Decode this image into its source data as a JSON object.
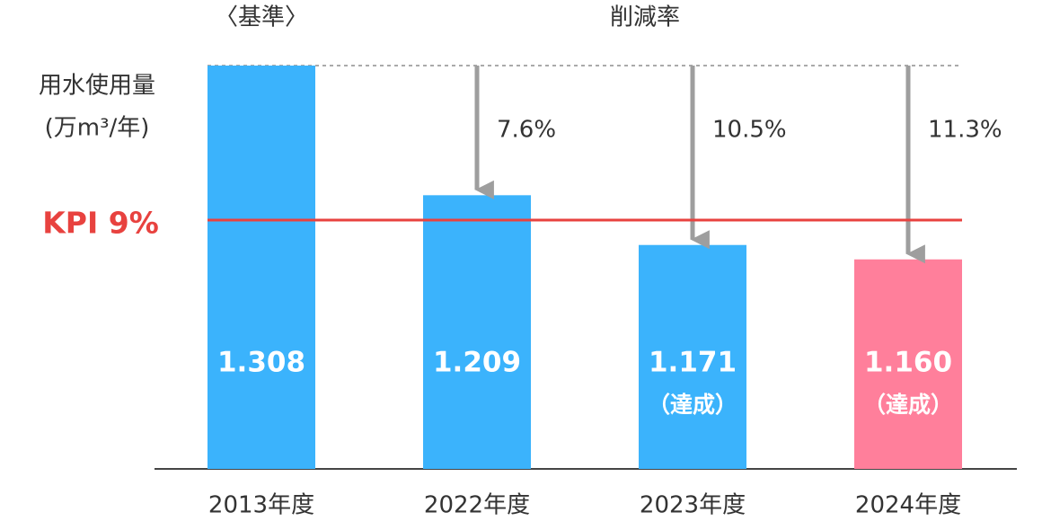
{
  "chart_data": {
    "type": "bar",
    "title": "削減率",
    "baseline_label": "〈基準〉",
    "y_label": [
      "用水使用量",
      "(万m³/年)"
    ],
    "categories": [
      "2013年度",
      "2022年度",
      "2023年度",
      "2024年度"
    ],
    "values": [
      1.308,
      1.209,
      1.171,
      1.16
    ],
    "value_labels": [
      "1.308",
      "1.209",
      "1.171",
      "1.160"
    ],
    "notes": [
      null,
      null,
      "（達成）",
      "（達成）"
    ],
    "colors": [
      "#3bb3fc",
      "#3bb3fc",
      "#3bb3fc",
      "#ff7f9b"
    ],
    "reductions": [
      null,
      7.6,
      10.5,
      11.3
    ],
    "reduction_labels": [
      null,
      "7.6%",
      "10.5%",
      "11.3%"
    ],
    "kpi": {
      "label": "KPI 9%",
      "value": 1.19,
      "color": "#e8423f"
    },
    "ylim": [
      1.0,
      1.308
    ]
  }
}
